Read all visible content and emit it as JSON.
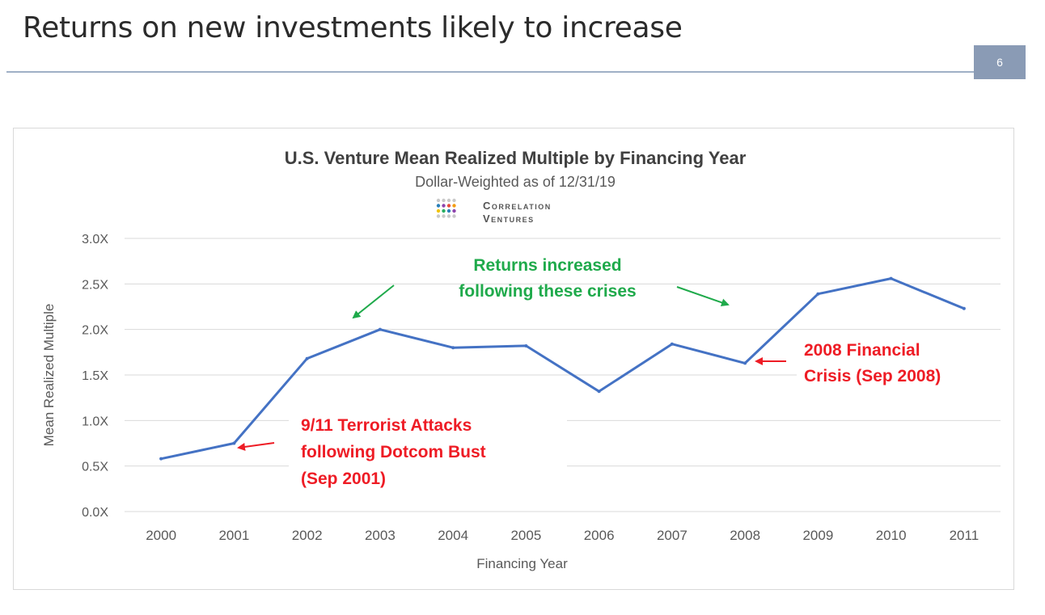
{
  "slide": {
    "title": "Returns on new investments likely to increase",
    "page_number": "6"
  },
  "logo": {
    "line1": "Correlation",
    "line2": "Ventures",
    "dot_colors": [
      "#e74c3c",
      "#f39c12",
      "#f1c40f",
      "#27ae60",
      "#2980b9",
      "#8e44ad"
    ]
  },
  "colors": {
    "line": "#4472c4",
    "annotation_green": "#1faa4b",
    "annotation_red": "#ee1c25",
    "grid": "#d9d9d9",
    "axis_text": "#595959"
  },
  "chart_data": {
    "type": "line",
    "title": "U.S. Venture Mean Realized Multiple by Financing Year",
    "subtitle": "Dollar-Weighted as of 12/31/19",
    "xlabel": "Financing Year",
    "ylabel": "Mean Realized Multiple",
    "categories": [
      "2000",
      "2001",
      "2002",
      "2003",
      "2004",
      "2005",
      "2006",
      "2007",
      "2008",
      "2009",
      "2010",
      "2011"
    ],
    "series": [
      {
        "name": "Mean Realized Multiple",
        "values": [
          0.58,
          0.75,
          1.68,
          2.0,
          1.8,
          1.82,
          1.32,
          1.84,
          1.63,
          2.39,
          2.56,
          2.23
        ]
      }
    ],
    "ylim": [
      0,
      3
    ],
    "yticks": [
      0,
      0.5,
      1,
      1.5,
      2,
      2.5,
      3
    ],
    "ytick_labels": [
      "0.0X",
      "0.5X",
      "1.0X",
      "1.5X",
      "2.0X",
      "2.5X",
      "3.0X"
    ],
    "grid": true,
    "annotations": {
      "green": [
        "Returns increased",
        "following these crises"
      ],
      "red_2001": [
        "9/11 Terrorist Attacks",
        "following Dotcom Bust",
        "(Sep 2001)"
      ],
      "red_2008": [
        "2008 Financial",
        "Crisis  (Sep 2008)"
      ]
    }
  }
}
